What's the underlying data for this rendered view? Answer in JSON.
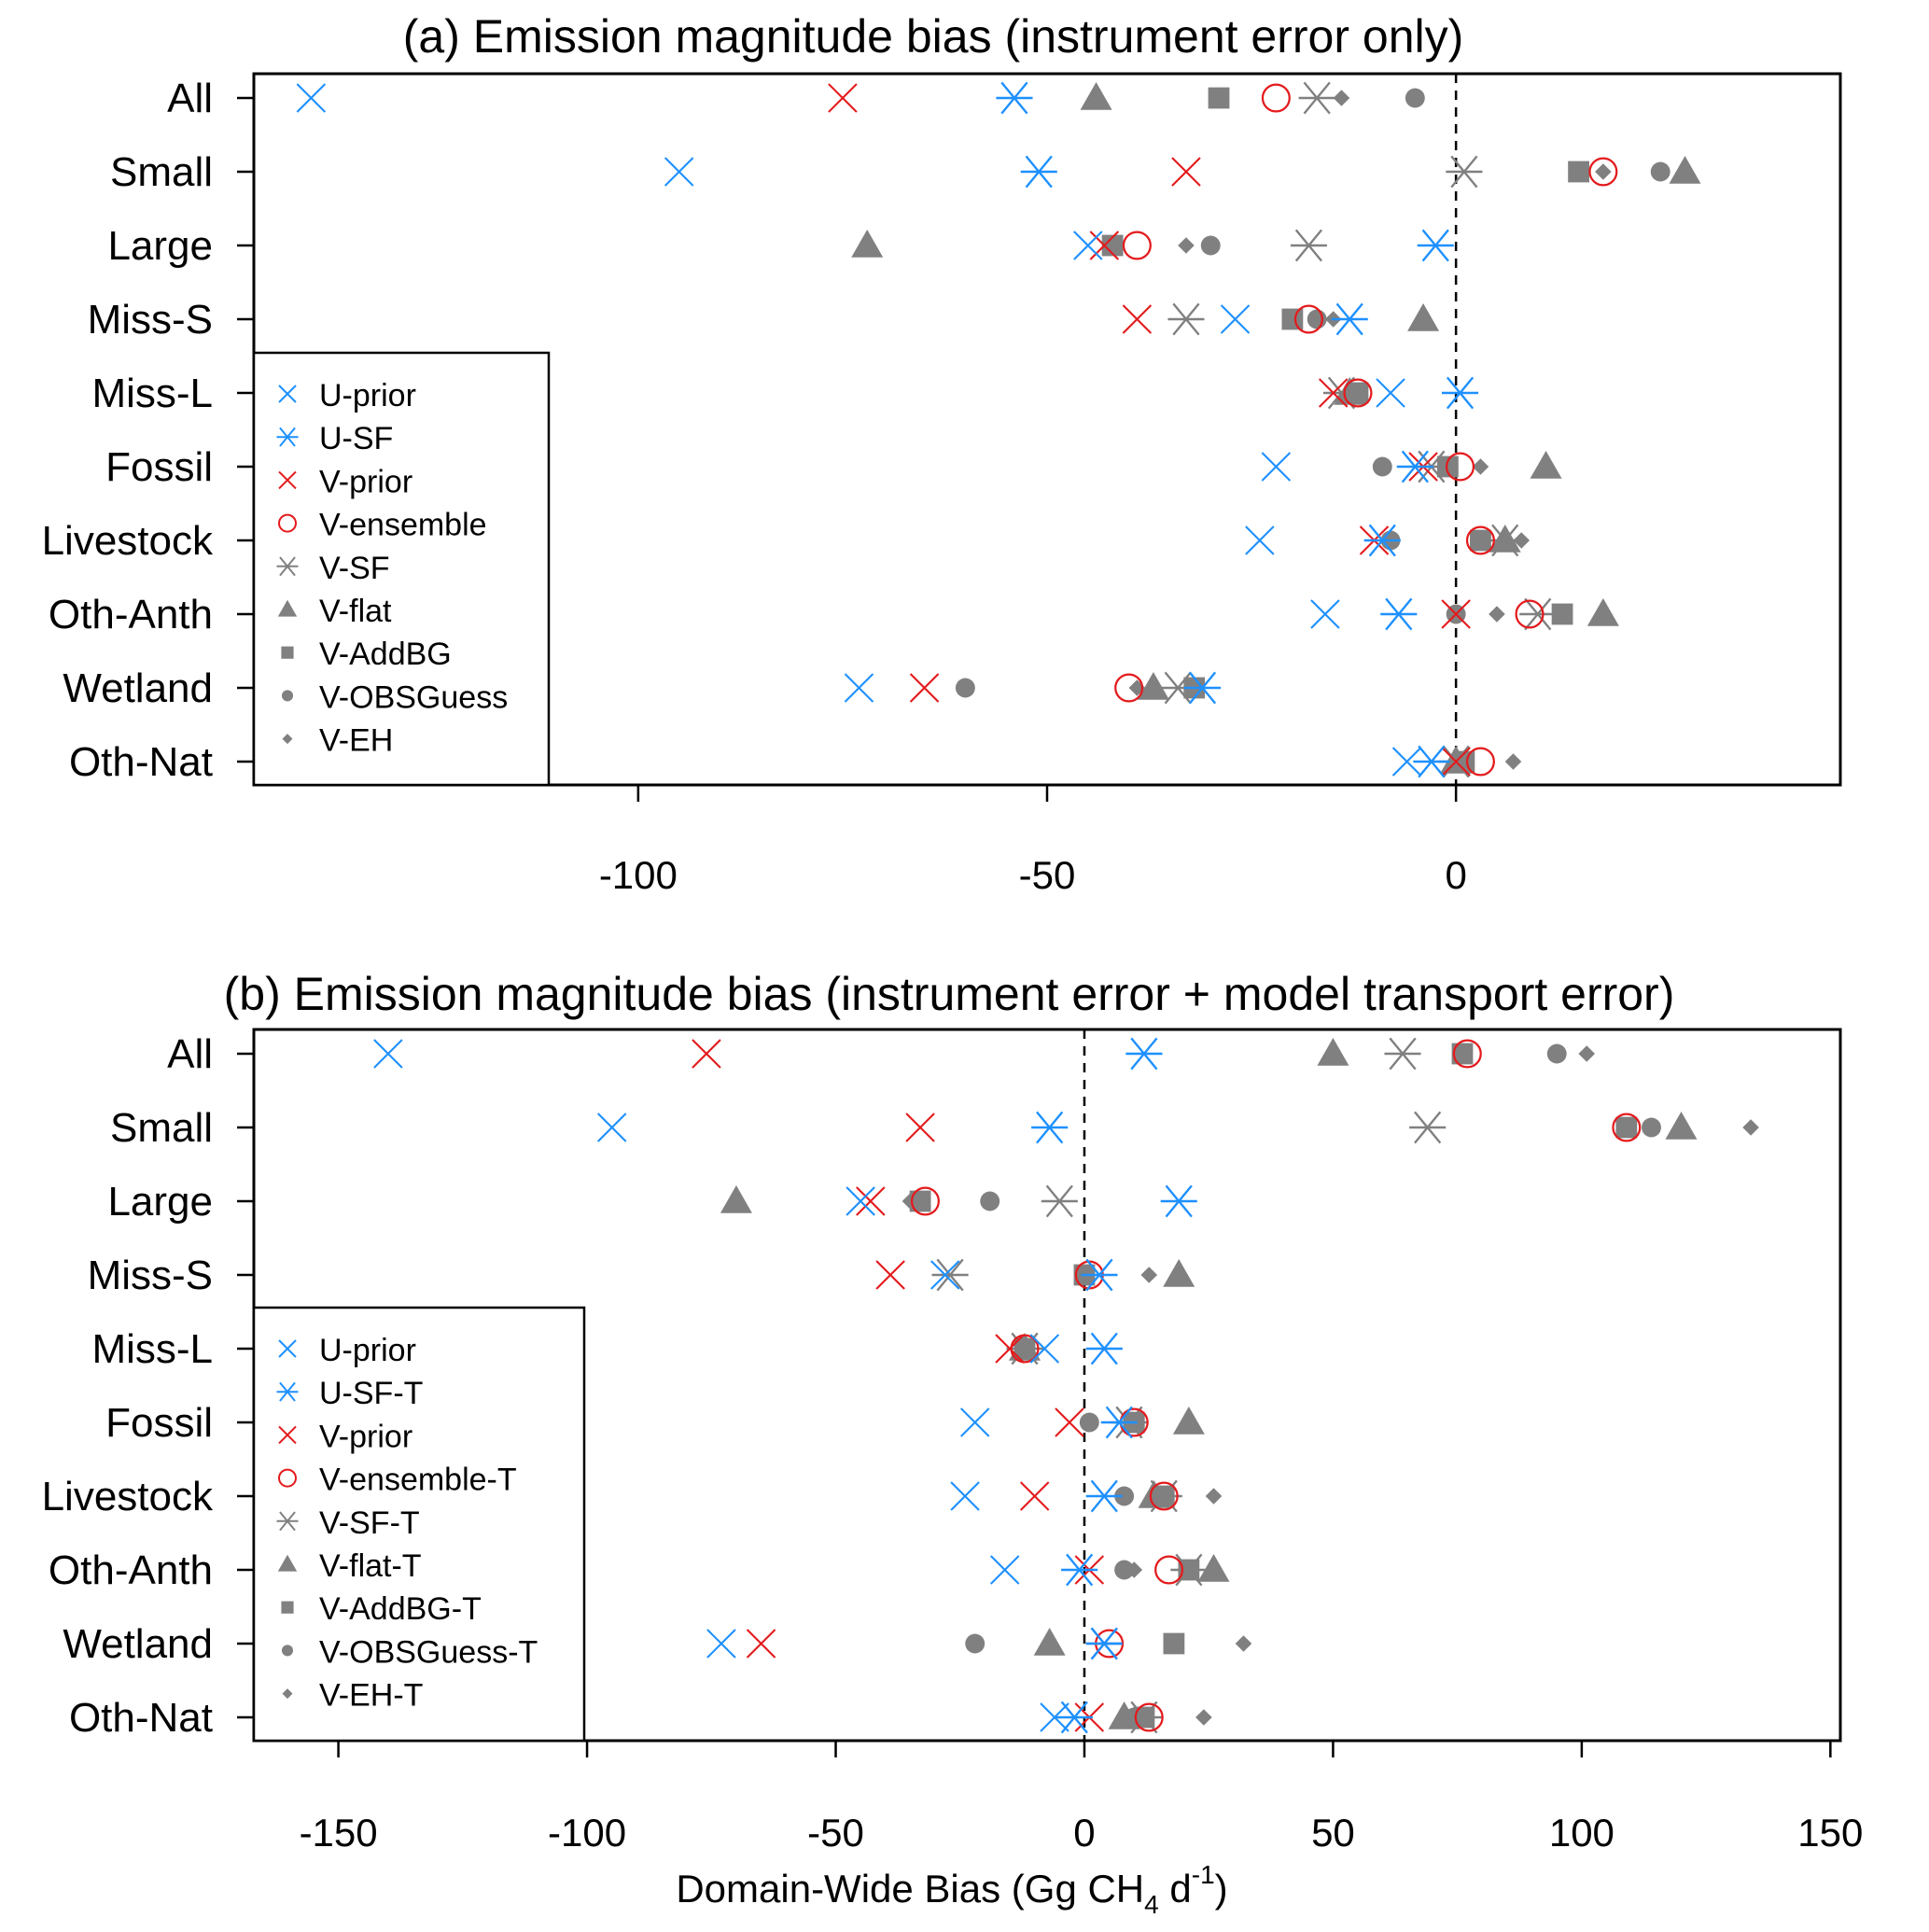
{
  "colors": {
    "blue": "#1e90ff",
    "red": "#e41a1c",
    "gray": "#808080"
  },
  "symbols": {
    "U-prior": {
      "shape": "cross-icon",
      "color": "blue"
    },
    "U-SF": {
      "shape": "asterisk-icon",
      "color": "blue"
    },
    "V-prior": {
      "shape": "cross-icon",
      "color": "red"
    },
    "V-ensemble": {
      "shape": "open-circle-icon",
      "color": "red"
    },
    "V-SF": {
      "shape": "asterisk-icon",
      "color": "gray"
    },
    "V-flat": {
      "shape": "triangle-icon",
      "color": "gray"
    },
    "V-AddBG": {
      "shape": "square-icon",
      "color": "gray"
    },
    "V-OBSGuess": {
      "shape": "filled-circle-icon",
      "color": "gray"
    },
    "V-EH": {
      "shape": "diamond-icon",
      "color": "gray"
    }
  },
  "xlabel": {
    "main": "Domain-Wide Bias (Gg CH",
    "sub": "4",
    "mid": " d",
    "sup": "-1",
    "end": ")"
  },
  "chart_data": [
    {
      "type": "scatter",
      "title": "(a) Emission magnitude bias (instrument error only)",
      "xlim": [
        -147,
        47
      ],
      "xticks": [
        -100,
        -50,
        0
      ],
      "xtick_labels": [
        "-100",
        "-50",
        "0"
      ],
      "reference_line": 0,
      "legend_position": "bottom-left",
      "categories": [
        "All",
        "Small",
        "Large",
        "Miss-S",
        "Miss-L",
        "Fossil",
        "Livestock",
        "Oth-Anth",
        "Wetland",
        "Oth-Nat"
      ],
      "series": [
        {
          "name": "U-prior",
          "symbol": "U-prior",
          "values": [
            -140,
            -95,
            -45,
            -27,
            -8,
            -22,
            -24,
            -16,
            -73,
            -6
          ]
        },
        {
          "name": "U-SF",
          "symbol": "U-SF",
          "values": [
            -54,
            -51,
            -2.5,
            -13,
            0.5,
            -5,
            -9,
            -7,
            -31,
            -3
          ]
        },
        {
          "name": "V-prior",
          "symbol": "V-prior",
          "values": [
            -75,
            -33,
            -43,
            -39,
            -15,
            -4,
            -10,
            0,
            -65,
            0
          ]
        },
        {
          "name": "V-ensemble",
          "symbol": "V-ensemble",
          "values": [
            -22,
            18,
            -39,
            -18,
            -12,
            0.5,
            3,
            9,
            -40,
            3
          ]
        },
        {
          "name": "V-SF",
          "symbol": "V-SF",
          "values": [
            -17,
            1,
            -18,
            -33,
            -14,
            -3,
            6,
            10,
            -34,
            0
          ]
        },
        {
          "name": "V-flat",
          "symbol": "V-flat",
          "values": [
            -44,
            28,
            -72,
            -4,
            -13,
            11,
            6,
            18,
            -37,
            0
          ]
        },
        {
          "name": "V-AddBG",
          "symbol": "V-AddBG",
          "values": [
            -29,
            15,
            -42,
            -20,
            -12,
            -1,
            3,
            13,
            -32,
            1
          ]
        },
        {
          "name": "V-OBSGuess",
          "symbol": "V-OBSGuess",
          "values": [
            -5,
            25,
            -30,
            -17,
            -12,
            -9,
            -8,
            0,
            -60,
            1
          ]
        },
        {
          "name": "V-EH",
          "symbol": "V-EH",
          "values": [
            -14,
            18,
            -33,
            -15,
            -12,
            3,
            8,
            5,
            -39,
            7
          ]
        }
      ]
    },
    {
      "type": "scatter",
      "title": "(b) Emission magnitude bias (instrument error + model transport error)",
      "xlim": [
        -167,
        152
      ],
      "xticks": [
        -150,
        -100,
        -50,
        0,
        50,
        100,
        150
      ],
      "xtick_labels": [
        "-150",
        "-100",
        "-50",
        "0",
        "50",
        "100",
        "150"
      ],
      "reference_line": 0,
      "legend_position": "bottom-left",
      "categories": [
        "All",
        "Small",
        "Large",
        "Miss-S",
        "Miss-L",
        "Fossil",
        "Livestock",
        "Oth-Anth",
        "Wetland",
        "Oth-Nat"
      ],
      "series": [
        {
          "name": "U-prior",
          "symbol": "U-prior",
          "values": [
            -140,
            -95,
            -45,
            -28,
            -8,
            -22,
            -24,
            -16,
            -73,
            -6
          ]
        },
        {
          "name": "U-SF-T",
          "symbol": "U-SF",
          "values": [
            12,
            -7,
            19,
            3,
            4,
            7,
            4,
            -1,
            4,
            -2
          ]
        },
        {
          "name": "V-prior",
          "symbol": "V-prior",
          "values": [
            -76,
            -33,
            -43,
            -39,
            -15,
            -3,
            -10,
            1,
            -65,
            1
          ]
        },
        {
          "name": "V-ensemble-T",
          "symbol": "V-ensemble",
          "values": [
            77,
            109,
            -32,
            1,
            -12,
            10,
            16,
            17,
            5,
            13
          ]
        },
        {
          "name": "V-SF-T",
          "symbol": "V-SF",
          "values": [
            64,
            69,
            -5,
            -27,
            -12,
            9,
            16,
            21,
            4,
            12
          ]
        },
        {
          "name": "V-flat-T",
          "symbol": "V-flat",
          "values": [
            50,
            120,
            -70,
            19,
            -12,
            21,
            14,
            26,
            -7,
            8
          ]
        },
        {
          "name": "V-AddBG-T",
          "symbol": "V-AddBG",
          "values": [
            76,
            109,
            -33,
            0,
            -12,
            10,
            16,
            21,
            18,
            12
          ]
        },
        {
          "name": "V-OBSGuess-T",
          "symbol": "V-OBSGuess",
          "values": [
            95,
            114,
            -19,
            0,
            -12,
            1,
            8,
            8,
            -22,
            10
          ]
        },
        {
          "name": "V-EH-T",
          "symbol": "V-EH",
          "values": [
            101,
            134,
            -35,
            13,
            -12,
            9,
            26,
            10,
            32,
            24
          ]
        }
      ]
    }
  ]
}
